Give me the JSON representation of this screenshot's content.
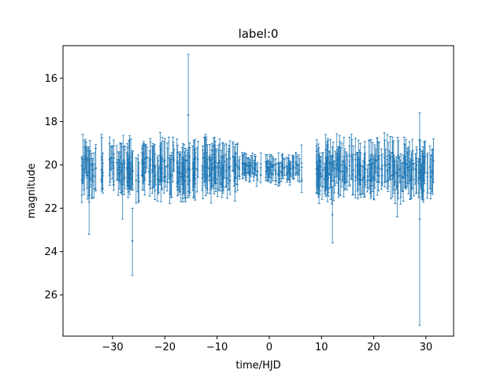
{
  "chart_data": {
    "type": "scatter",
    "title": "label:0",
    "xlabel": "time/HJD",
    "ylabel": "magnitude",
    "xlim": [
      -39.5,
      35.3
    ],
    "ylim": [
      27.9,
      14.5
    ],
    "y_inverted": true,
    "x_ticks": [
      -30,
      -20,
      -10,
      0,
      10,
      20,
      30
    ],
    "y_ticks": [
      16,
      18,
      20,
      22,
      24,
      26
    ],
    "x_tick_labels": [
      "−30",
      "−20",
      "−10",
      "0",
      "10",
      "20",
      "30"
    ],
    "y_tick_labels": [
      "16",
      "18",
      "20",
      "22",
      "24",
      "26"
    ],
    "grid": false,
    "legend": "none",
    "marker": "point with vertical error bars",
    "color": "#1f77b4",
    "series": [
      {
        "x_range": [
          -36.0,
          31.5
        ],
        "baseline_magnitude": 20.2,
        "point_count": 620,
        "highlighted_points": [
          {
            "x": -34.5,
            "y": 21.5,
            "yerr_low": 1.7,
            "yerr_high": 1.0
          },
          {
            "x": -26.2,
            "y": 23.5,
            "yerr_low": 1.6,
            "yerr_high": 1.5
          },
          {
            "x": -15.5,
            "y": 17.7,
            "yerr_low": 2.8,
            "yerr_high": 2.8
          },
          {
            "x": -28.1,
            "y": 21.2,
            "yerr_low": 1.3,
            "yerr_high": 1.3
          },
          {
            "x": 12.1,
            "y": 22.3,
            "yerr_low": 1.3,
            "yerr_high": 1.3
          },
          {
            "x": 22.6,
            "y": 19.6,
            "yerr_low": 1.5,
            "yerr_high": 1.0
          },
          {
            "x": 28.8,
            "y": 22.5,
            "yerr_low": 4.9,
            "yerr_high": 4.9
          },
          {
            "x": -9.5,
            "y": 19.8,
            "yerr_low": 1.4,
            "yerr_high": 1.0
          },
          {
            "x": 9.5,
            "y": 20.0,
            "yerr_low": 1.1,
            "yerr_high": 0.8
          },
          {
            "x": 24.5,
            "y": 21.0,
            "yerr_low": 1.4,
            "yerr_high": 1.0
          }
        ]
      }
    ]
  }
}
